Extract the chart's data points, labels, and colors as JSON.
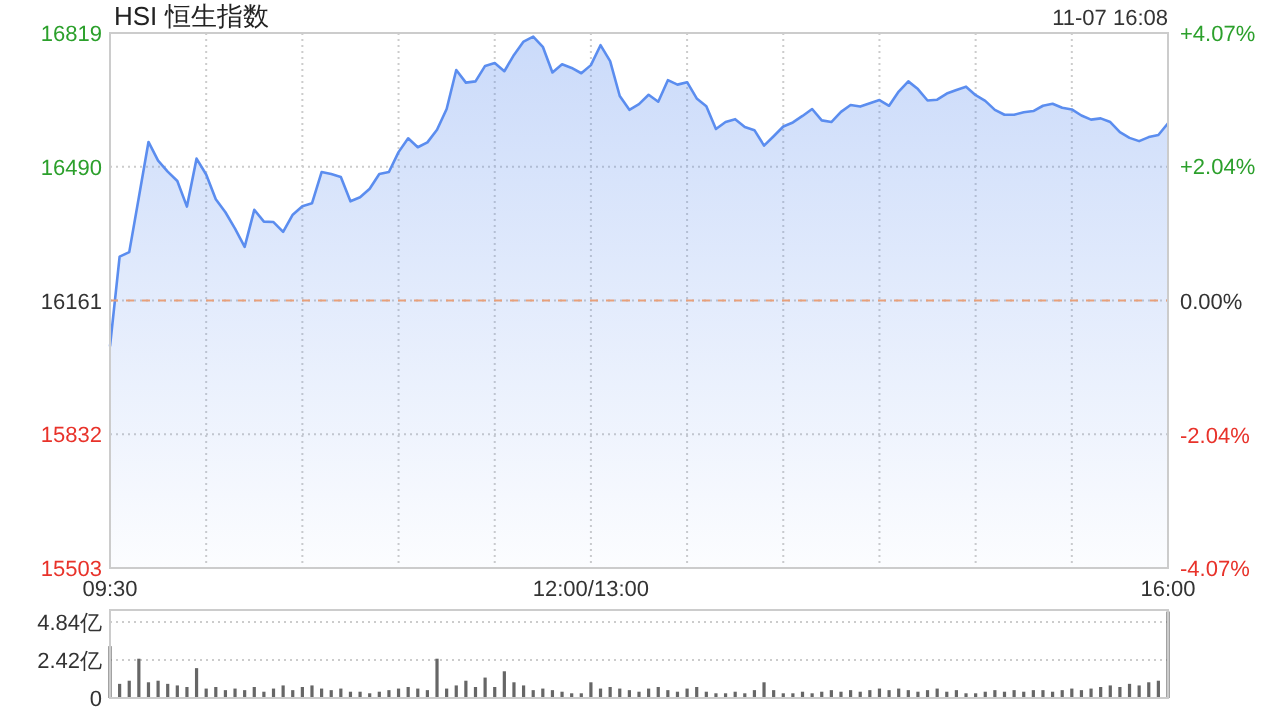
{
  "chart_data": [
    {
      "type": "area",
      "title": "HSI 恒生指数",
      "annotations": [
        "11-07 16:08"
      ],
      "categories": [
        "09:30",
        null,
        null,
        null,
        null,
        null,
        null,
        null,
        null,
        null,
        null,
        null,
        null,
        null,
        null,
        null,
        null,
        null,
        null,
        null,
        null,
        null,
        null,
        null,
        null,
        null,
        null,
        null,
        null,
        null,
        null,
        null,
        null,
        null,
        null,
        null,
        null,
        null,
        null,
        null,
        null,
        null,
        null,
        null,
        null,
        null,
        null,
        null,
        null,
        null,
        "12:00/13:00",
        null,
        null,
        null,
        null,
        null,
        null,
        null,
        null,
        null,
        null,
        null,
        null,
        null,
        null,
        null,
        null,
        null,
        null,
        null,
        null,
        null,
        null,
        null,
        null,
        null,
        null,
        null,
        null,
        null,
        null,
        null,
        null,
        null,
        null,
        null,
        null,
        null,
        null,
        null,
        null,
        null,
        null,
        null,
        null,
        null,
        null,
        null,
        null,
        null,
        null,
        null,
        null,
        null,
        null,
        null,
        null,
        null,
        null,
        null,
        "16:00"
      ],
      "series": [
        {
          "color": "#5b8def",
          "values": [
            16048,
            16269,
            16280,
            16415,
            16551,
            16505,
            16478,
            16455,
            16392,
            16510,
            16471,
            16410,
            16378,
            16338,
            16293,
            16384,
            16355,
            16354,
            16330,
            16372,
            16393,
            16400,
            16477,
            16472,
            16465,
            16405,
            16415,
            16436,
            16472,
            16477,
            16526,
            16560,
            16538,
            16550,
            16581,
            16632,
            16728,
            16697,
            16700,
            16738,
            16745,
            16725,
            16765,
            16798,
            16810,
            16785,
            16722,
            16742,
            16733,
            16720,
            16740,
            16789,
            16750,
            16664,
            16630,
            16644,
            16667,
            16650,
            16703,
            16692,
            16698,
            16658,
            16639,
            16583,
            16600,
            16607,
            16588,
            16580,
            16542,
            16565,
            16589,
            16599,
            16615,
            16632,
            16604,
            16600,
            16625,
            16642,
            16638,
            16646,
            16654,
            16640,
            16675,
            16700,
            16681,
            16653,
            16655,
            16670,
            16679,
            16687,
            16666,
            16652,
            16630,
            16618,
            16618,
            16624,
            16627,
            16640,
            16645,
            16635,
            16631,
            16616,
            16606,
            16609,
            16600,
            16575,
            16561,
            16553,
            16563,
            16568,
            16597
          ]
        }
      ],
      "ylim": [
        15503,
        16819
      ],
      "yticks": [
        15503,
        15832,
        16161,
        16490,
        16819
      ],
      "y2lim": [
        -4.07,
        4.07
      ],
      "y2ticks": [
        {
          "value": -4.07,
          "label": "-4.07%"
        },
        {
          "value": -2.04,
          "label": "-2.04%"
        },
        {
          "value": 0,
          "label": "0.00%"
        },
        {
          "value": 2.04,
          "label": "+2.04%"
        },
        {
          "value": 4.07,
          "label": "+4.07%"
        }
      ],
      "ref_lines": [
        {
          "axis": "y",
          "value": 16161,
          "color": "#e8a07a",
          "line_style": "dashed"
        }
      ],
      "grid": true
    },
    {
      "type": "bar",
      "color": "#666666",
      "categories": [
        null,
        null,
        null,
        null,
        null,
        null,
        null,
        null,
        null,
        null,
        null,
        null,
        null,
        null,
        null,
        null,
        null,
        null,
        null,
        null,
        null,
        null,
        null,
        null,
        null,
        null,
        null,
        null,
        null,
        null,
        null,
        null,
        null,
        null,
        null,
        null,
        null,
        null,
        null,
        null,
        null,
        null,
        null,
        null,
        null,
        null,
        null,
        null,
        null,
        null,
        null,
        null,
        null,
        null,
        null,
        null,
        null,
        null,
        null,
        null,
        null,
        null,
        null,
        null,
        null,
        null,
        null,
        null,
        null,
        null,
        null,
        null,
        null,
        null,
        null,
        null,
        null,
        null,
        null,
        null,
        null,
        null,
        null,
        null,
        null,
        null,
        null,
        null,
        null,
        null,
        null,
        null,
        null,
        null,
        null,
        null,
        null,
        null,
        null,
        null,
        null,
        null,
        null,
        null,
        null,
        null,
        null,
        null,
        null,
        null,
        null
      ],
      "values": [
        3.3,
        0.9,
        1.1,
        2.5,
        1.0,
        1.1,
        0.9,
        0.8,
        0.7,
        1.9,
        0.6,
        0.7,
        0.5,
        0.6,
        0.5,
        0.7,
        0.4,
        0.6,
        0.8,
        0.5,
        0.7,
        0.8,
        0.6,
        0.5,
        0.6,
        0.4,
        0.4,
        0.3,
        0.4,
        0.5,
        0.6,
        0.7,
        0.6,
        0.5,
        2.5,
        0.6,
        0.8,
        1.1,
        0.7,
        1.3,
        0.7,
        1.7,
        1.0,
        0.8,
        0.5,
        0.6,
        0.5,
        0.4,
        0.3,
        0.3,
        1.0,
        0.6,
        0.7,
        0.6,
        0.5,
        0.4,
        0.6,
        0.7,
        0.5,
        0.4,
        0.6,
        0.7,
        0.4,
        0.3,
        0.3,
        0.4,
        0.3,
        0.5,
        1.0,
        0.5,
        0.3,
        0.3,
        0.4,
        0.3,
        0.4,
        0.5,
        0.4,
        0.5,
        0.4,
        0.5,
        0.6,
        0.5,
        0.6,
        0.5,
        0.4,
        0.5,
        0.6,
        0.4,
        0.5,
        0.3,
        0.3,
        0.4,
        0.5,
        0.4,
        0.5,
        0.4,
        0.5,
        0.5,
        0.4,
        0.5,
        0.6,
        0.5,
        0.6,
        0.7,
        0.8,
        0.7,
        0.9,
        0.8,
        1.0,
        1.1,
        5.5
      ],
      "ylim": [
        0,
        5.6
      ],
      "yticks": [
        0,
        {
          "value": 2.42,
          "label": "2.42亿"
        },
        {
          "value": 4.84,
          "label": "4.84亿"
        }
      ],
      "grid": "y",
      "tick_labels": "y"
    }
  ]
}
